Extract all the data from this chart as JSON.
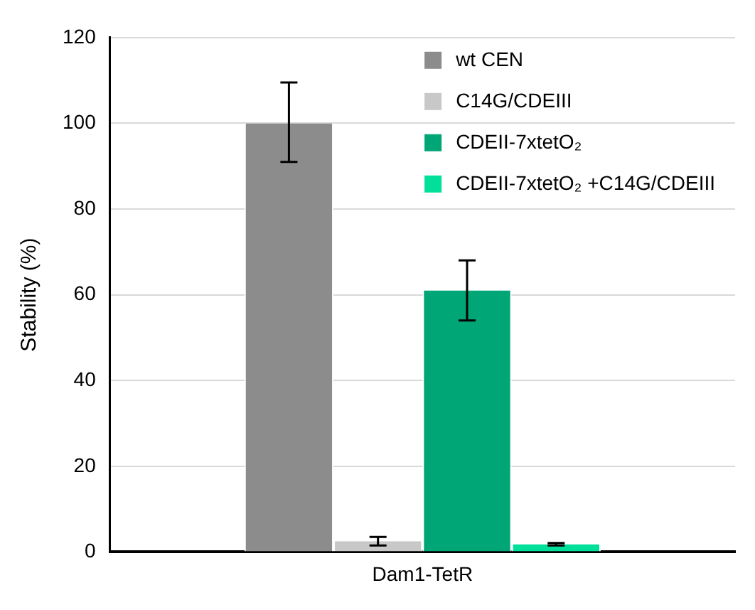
{
  "chart_data": {
    "type": "bar",
    "ylabel": "Stability (%)",
    "categories": [
      "Dam1-TetR"
    ],
    "series": [
      {
        "name": "wt CEN",
        "color": "#8c8c8c",
        "values": [
          100
        ],
        "errors": [
          [
            91,
            109.5
          ]
        ]
      },
      {
        "name": "C14G/CDEIII",
        "color": "#c8c8c8",
        "values": [
          2.5
        ],
        "errors": [
          [
            1.5,
            3.5
          ]
        ]
      },
      {
        "name": "CDEII-7xtetO₂",
        "color": "#00a676",
        "values": [
          61
        ],
        "errors": [
          [
            54,
            68
          ]
        ]
      },
      {
        "name": "CDEII-7xtetO₂ +C14G/CDEIII",
        "color": "#00e09a",
        "values": [
          1.8
        ],
        "errors": [
          [
            1.5,
            2.1
          ]
        ]
      }
    ],
    "ylim": [
      0,
      120
    ],
    "yticks": [
      0,
      20,
      40,
      60,
      80,
      100,
      120
    ],
    "grid": "y",
    "legend": "top right"
  }
}
